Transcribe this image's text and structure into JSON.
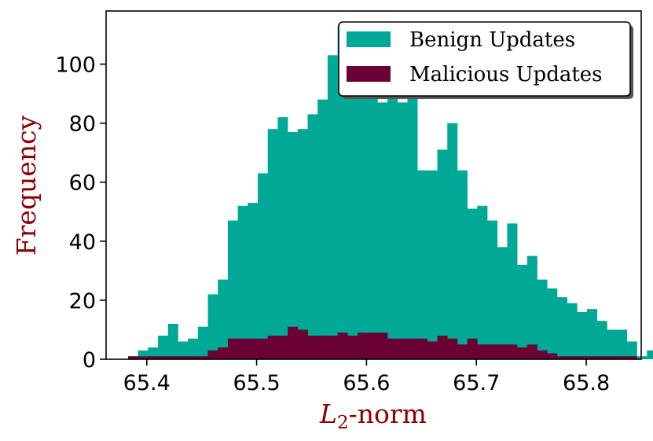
{
  "chart_data": {
    "type": "bar",
    "ylabel": "Frequency",
    "xlabel": {
      "base": "L",
      "sub": "2",
      "rest": "-norm"
    },
    "xlim": [
      65.363,
      65.85
    ],
    "ylim": [
      0,
      118
    ],
    "xticks": [
      65.4,
      65.5,
      65.6,
      65.7,
      65.8
    ],
    "xtick_labels": [
      "65.4",
      "65.5",
      "65.6",
      "65.7",
      "65.8"
    ],
    "yticks": [
      0,
      20,
      40,
      60,
      80,
      100
    ],
    "ytick_labels": [
      "0",
      "20",
      "40",
      "60",
      "80",
      "100"
    ],
    "grid": false,
    "legend_position": "top-right",
    "colors": {
      "benign": "#00a896",
      "malicious": "#6b0033",
      "label": "#8b0000"
    },
    "series": [
      {
        "name": "Benign Updates",
        "key": "benign",
        "x_start": 65.383,
        "bin_width": 0.00908,
        "values": [
          1,
          3,
          4,
          8,
          12,
          6,
          7,
          11,
          22,
          27,
          47,
          52,
          53,
          63,
          78,
          82,
          77,
          78,
          83,
          88,
          103,
          113,
          107,
          112,
          92,
          87,
          91,
          87,
          92,
          64,
          64,
          71,
          80,
          64,
          51,
          52,
          47,
          38,
          46,
          32,
          35,
          27,
          24,
          21,
          19,
          16,
          17,
          13,
          10,
          10,
          6,
          1,
          3
        ]
      },
      {
        "name": "Malicious Updates",
        "key": "malicious",
        "x_start": 65.383,
        "bin_width": 0.00908,
        "values": [
          1,
          1,
          1,
          1,
          1,
          1,
          1,
          1,
          3,
          4,
          7,
          7,
          7,
          7,
          8,
          8,
          11,
          10,
          8,
          8,
          8,
          9,
          8,
          9,
          9,
          9,
          7,
          7,
          7,
          7,
          6,
          8,
          7,
          5,
          7,
          5,
          5,
          5,
          5,
          4,
          5,
          3,
          2,
          1,
          1,
          1,
          1,
          1,
          1,
          1,
          1,
          0,
          0
        ]
      }
    ]
  }
}
